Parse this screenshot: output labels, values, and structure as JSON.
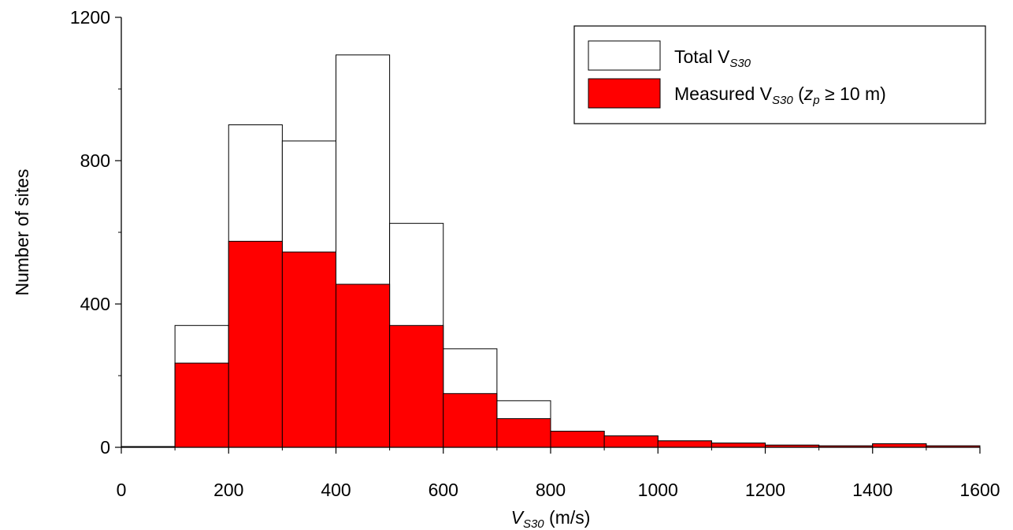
{
  "chart_data": {
    "type": "bar",
    "xlabel_main": "V",
    "xlabel_sub": "S30",
    "xlabel_unit": " (m/s)",
    "ylabel": "Number of sites",
    "xlim": [
      0,
      1600
    ],
    "ylim": [
      0,
      1200
    ],
    "x_ticks": [
      0,
      200,
      400,
      600,
      800,
      1000,
      1200,
      1400,
      1600
    ],
    "y_ticks": [
      0,
      400,
      800,
      1200
    ],
    "grid": false,
    "legend_position": "top-right",
    "bins": [
      [
        0,
        100
      ],
      [
        100,
        200
      ],
      [
        200,
        300
      ],
      [
        300,
        400
      ],
      [
        400,
        500
      ],
      [
        500,
        600
      ],
      [
        600,
        700
      ],
      [
        700,
        800
      ],
      [
        800,
        900
      ],
      [
        900,
        1000
      ],
      [
        1000,
        1100
      ],
      [
        1100,
        1200
      ],
      [
        1200,
        1300
      ],
      [
        1300,
        1400
      ],
      [
        1400,
        1500
      ],
      [
        1500,
        1600
      ]
    ],
    "series": [
      {
        "name": "Total VS30",
        "legend_main": "Total V",
        "legend_sub": "S30",
        "color": "#ffffff",
        "values": [
          2,
          340,
          900,
          855,
          1095,
          625,
          275,
          130,
          45,
          32,
          18,
          12,
          6,
          4,
          10,
          4
        ]
      },
      {
        "name": "Measured VS30 (zp ≥ 10 m)",
        "legend_main": "Measured V",
        "legend_sub": "S30",
        "legend_paren_open": " (",
        "legend_z": "z",
        "legend_zsub": "p",
        "legend_tail": " ≥ 10 m)",
        "color": "#ff0000",
        "values": [
          2,
          235,
          575,
          545,
          455,
          340,
          150,
          80,
          45,
          32,
          18,
          12,
          6,
          4,
          10,
          4
        ]
      }
    ]
  }
}
